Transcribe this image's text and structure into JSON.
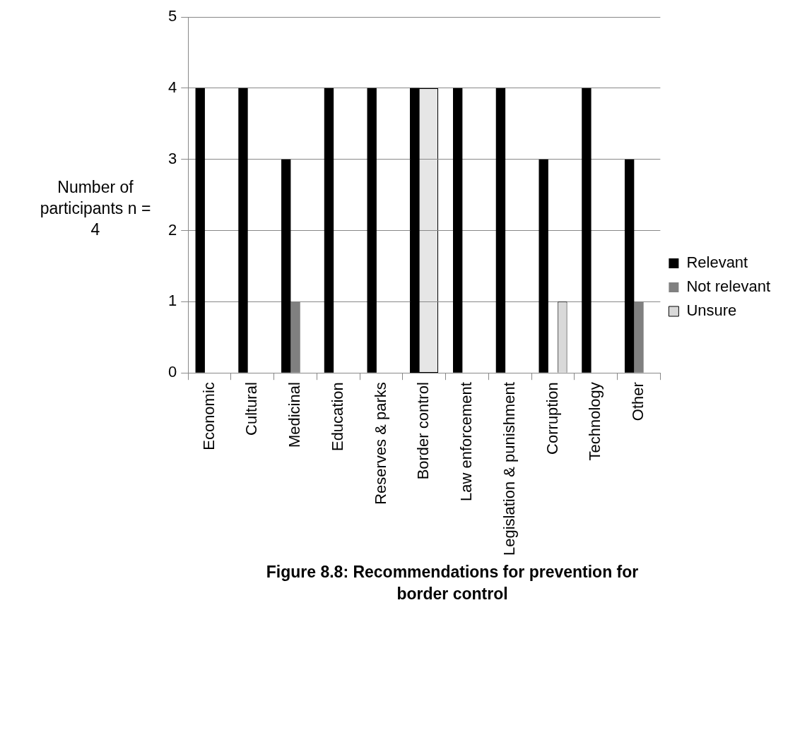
{
  "chart_data": {
    "type": "bar",
    "title": "Figure 8.8: Recommendations for prevention for border control",
    "ylabel": "Number of participants n = 4",
    "categories": [
      "Economic",
      "Cultural",
      "Medicinal",
      "Education",
      "Reserves & parks",
      "Border control",
      "Law enforcement",
      "Legislation & punishment",
      "Corruption",
      "Technology",
      "Other"
    ],
    "series": [
      {
        "name": "Relevant",
        "color": "#000000",
        "values": [
          4,
          4,
          3,
          4,
          4,
          4,
          4,
          4,
          3,
          4,
          3
        ]
      },
      {
        "name": "Not relevant",
        "color": "#808080",
        "values": [
          0,
          0,
          1,
          0,
          0,
          0,
          0,
          0,
          0,
          0,
          1
        ]
      },
      {
        "name": "Unsure",
        "color": "#d9d9d9",
        "values": [
          0,
          0,
          0,
          0,
          0,
          0,
          0,
          0,
          1,
          0,
          0
        ]
      }
    ],
    "ylim": [
      0,
      5
    ],
    "yticks": [
      0,
      1,
      2,
      3,
      4,
      5
    ],
    "grid": "y",
    "legend": "right"
  }
}
